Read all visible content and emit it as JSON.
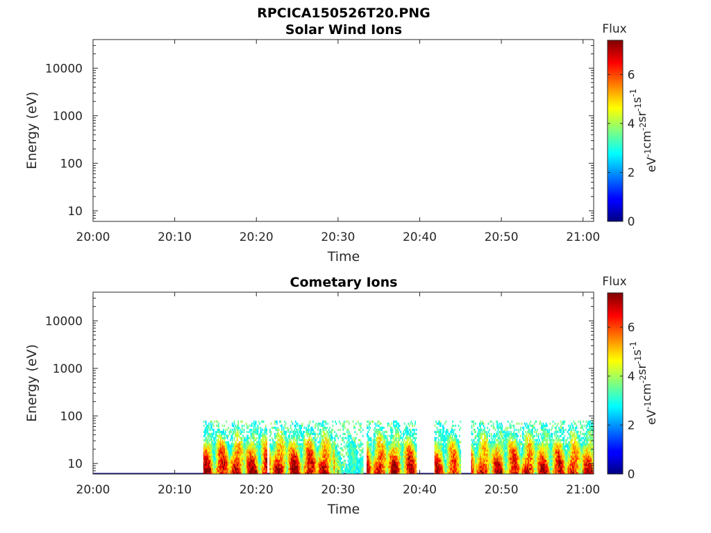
{
  "chart_data": {
    "type": "heatmap",
    "figure_title": "RPCICA150526T20.PNG",
    "time_ticks": [
      "20:00",
      "20:10",
      "20:20",
      "20:30",
      "20:40",
      "20:50",
      "21:00"
    ],
    "time_range_min": [
      0,
      61.3
    ],
    "energy_ticks": [
      {
        "value": 10,
        "label": "10"
      },
      {
        "value": 100,
        "label": "100"
      },
      {
        "value": 1000,
        "label": "1000"
      },
      {
        "value": 10000,
        "label": "10000"
      }
    ],
    "energy_range_ev": [
      6,
      40000
    ],
    "yscale": "log",
    "colorbar": {
      "label": "Flux",
      "units_base": [
        "eV",
        "cm",
        "sr",
        "s"
      ],
      "units_exp": [
        "-1",
        "-2",
        "-1",
        "-1"
      ],
      "ticks": [
        "0",
        "2",
        "4",
        "6"
      ],
      "range": [
        0,
        7.4
      ],
      "colormap": "jet"
    },
    "panels": [
      {
        "title": "Solar Wind Ions",
        "xlabel": "Time",
        "ylabel": "Energy (eV)",
        "segments": []
      },
      {
        "title": "Cometary Ions",
        "xlabel": "Time",
        "ylabel": "Energy (eV)",
        "max_energy_ev": 80,
        "segments": [
          {
            "start": 13.5,
            "end": 21.3,
            "peak": 7.2
          },
          {
            "start": 21.6,
            "end": 29.6,
            "peak": 7.4
          },
          {
            "start": 29.6,
            "end": 33.0,
            "peak": 3.8
          },
          {
            "start": 33.5,
            "end": 39.5,
            "peak": 7.2
          },
          {
            "start": 41.8,
            "end": 45.0,
            "peak": 6.6
          },
          {
            "start": 46.3,
            "end": 61.2,
            "peak": 7.0
          }
        ]
      }
    ]
  }
}
